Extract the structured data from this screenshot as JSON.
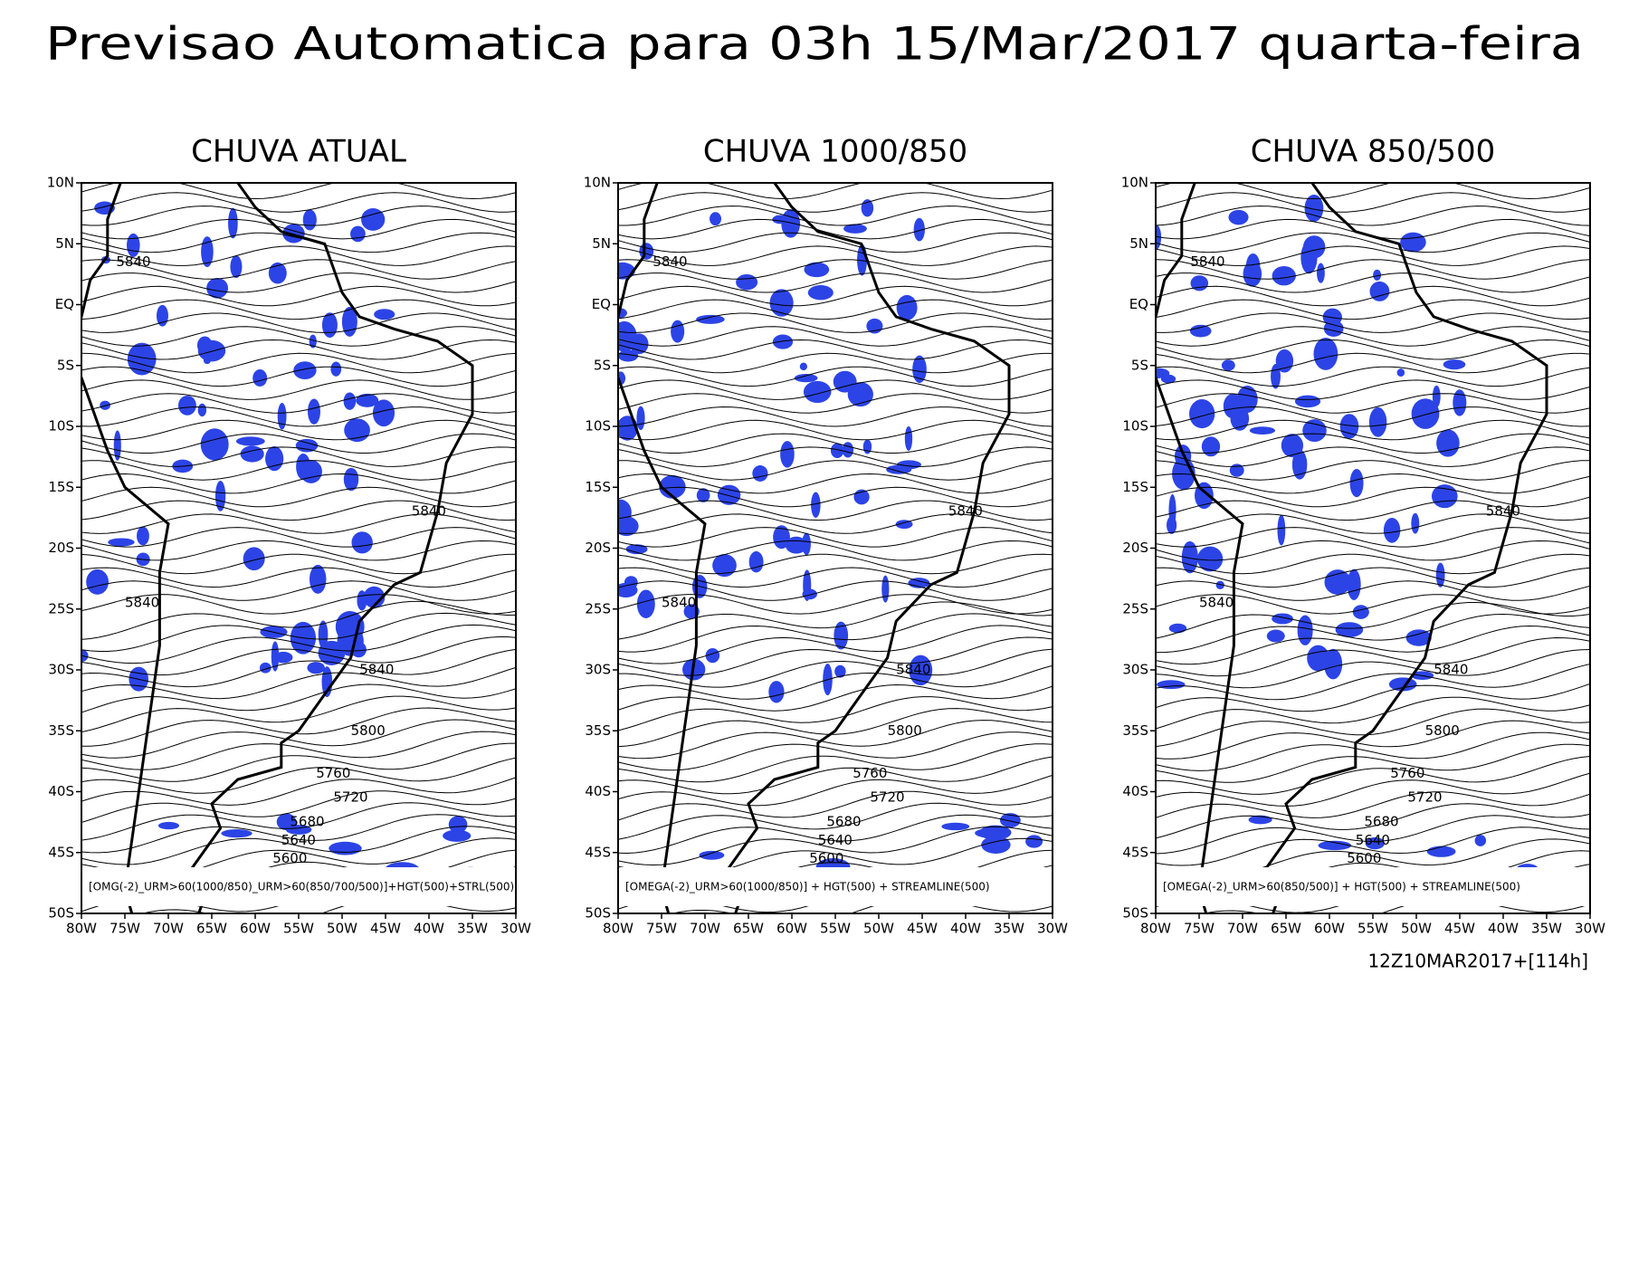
{
  "header": {
    "title": "Previsao Automatica para 03h 15/Mar/2017 quarta-feira"
  },
  "map": {
    "lon_range": [
      -80,
      -30
    ],
    "lat_range": [
      -50,
      10
    ],
    "lat_ticks": [
      {
        "value": 10,
        "label": "10N"
      },
      {
        "value": 5,
        "label": "5N"
      },
      {
        "value": 0,
        "label": "EQ"
      },
      {
        "value": -5,
        "label": "5S"
      },
      {
        "value": -10,
        "label": "10S"
      },
      {
        "value": -15,
        "label": "15S"
      },
      {
        "value": -20,
        "label": "20S"
      },
      {
        "value": -25,
        "label": "25S"
      },
      {
        "value": -30,
        "label": "30S"
      },
      {
        "value": -35,
        "label": "35S"
      },
      {
        "value": -40,
        "label": "40S"
      },
      {
        "value": -45,
        "label": "45S"
      },
      {
        "value": -50,
        "label": "50S"
      }
    ],
    "lon_ticks": [
      {
        "value": -80,
        "label": "80W"
      },
      {
        "value": -75,
        "label": "75W"
      },
      {
        "value": -70,
        "label": "70W"
      },
      {
        "value": -65,
        "label": "65W"
      },
      {
        "value": -60,
        "label": "60W"
      },
      {
        "value": -55,
        "label": "55W"
      },
      {
        "value": -50,
        "label": "50W"
      },
      {
        "value": -45,
        "label": "45W"
      },
      {
        "value": -40,
        "label": "40W"
      },
      {
        "value": -35,
        "label": "35W"
      },
      {
        "value": -30,
        "label": "30W"
      }
    ],
    "contour_labels": [
      5840,
      5840,
      5840,
      5840,
      5800,
      5760,
      5720,
      5680,
      5640,
      5600
    ]
  },
  "panels": [
    {
      "title": "CHUVA ATUAL",
      "caption": "[OMG(-2)_URM>60(1000/850)_URM>60(850/700/500)]+HGT(500)+STRL(500)"
    },
    {
      "title": "CHUVA 1000/850",
      "caption": "[OMEGA(-2)_URM>60(1000/850)] + HGT(500) + STREAMLINE(500)"
    },
    {
      "title": "CHUVA 850/500",
      "caption": "[OMEGA(-2)_URM>60(850/500)] + HGT(500) + STREAMLINE(500)"
    }
  ],
  "footer": {
    "init": "12Z10MAR2017+[114h]"
  }
}
